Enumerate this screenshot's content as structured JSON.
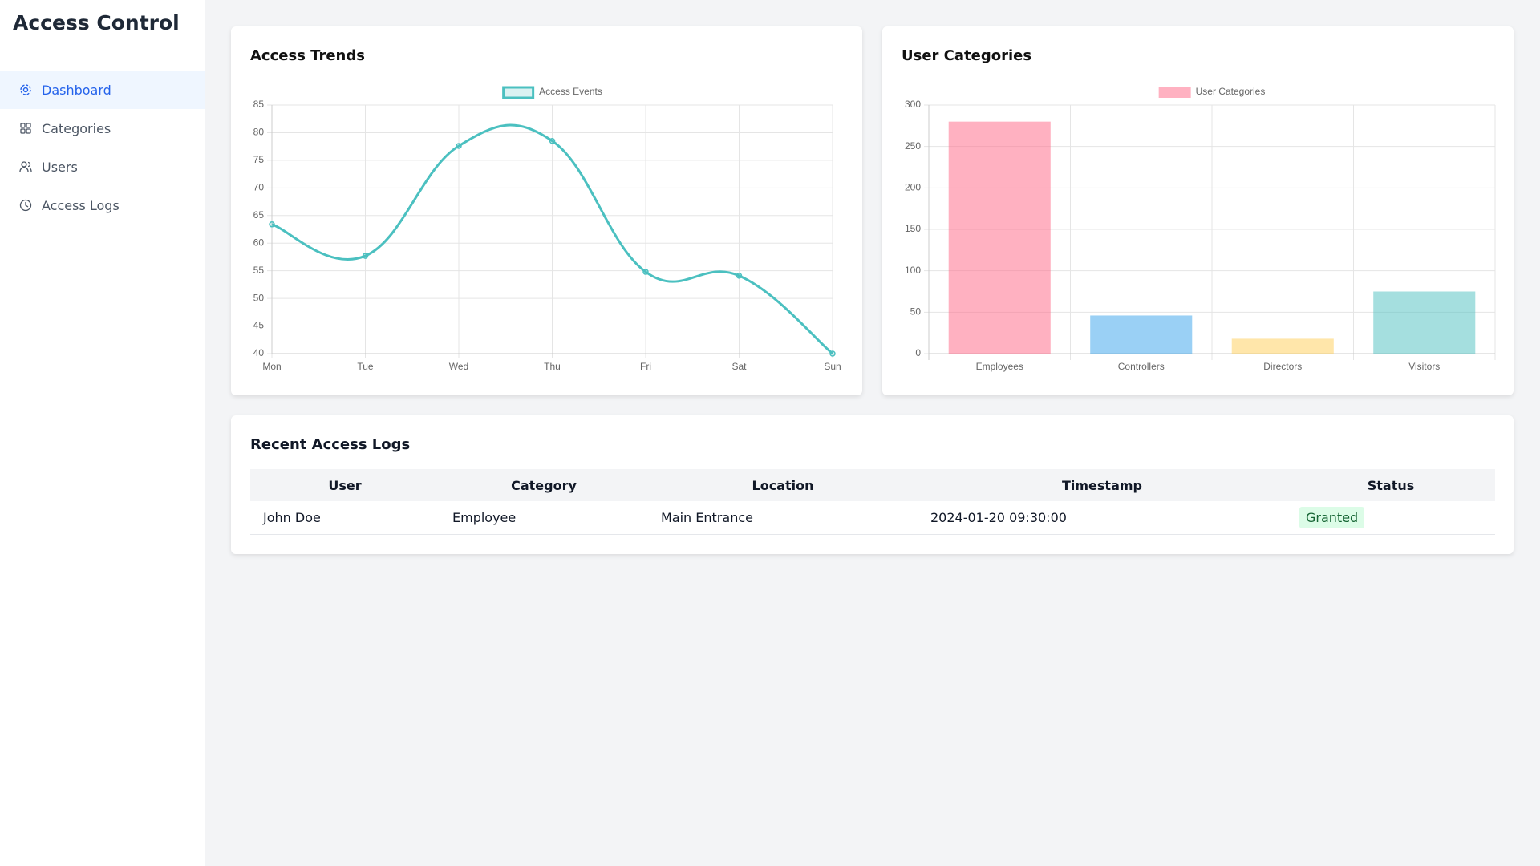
{
  "sidebar": {
    "title": "Access Control",
    "nav": [
      "Dashboard",
      "Categories",
      "Users",
      "Access Logs"
    ]
  },
  "chart_data": [
    {
      "type": "line",
      "title": "Access Trends",
      "categories": [
        "Mon",
        "Tue",
        "Wed",
        "Thu",
        "Fri",
        "Sat",
        "Sun"
      ],
      "series": [
        {
          "name": "Access Events",
          "color": "#4bc0c0",
          "values": [
            63.4,
            57.7,
            77.6,
            78.5,
            54.8,
            54.1,
            40
          ]
        }
      ],
      "ylim": [
        40,
        85
      ],
      "yticks": [
        40,
        45,
        50,
        55,
        60,
        65,
        70,
        75,
        80,
        85
      ],
      "grid": true,
      "legend": "top"
    },
    {
      "type": "bar",
      "title": "User Categories",
      "categories": [
        "Employees",
        "Controllers",
        "Directors",
        "Visitors"
      ],
      "series": [
        {
          "name": "User Categories",
          "color": "rgba(255,99,132,0.5)",
          "colors": [
            "rgba(255,99,132,0.5)",
            "rgba(54,162,235,0.5)",
            "rgba(255,206,86,0.5)",
            "rgba(75,192,192,0.5)"
          ],
          "values": [
            280,
            46,
            18,
            75
          ]
        }
      ],
      "ylim": [
        0,
        300
      ],
      "yticks": [
        0,
        50,
        100,
        150,
        200,
        250,
        300
      ],
      "grid": true,
      "legend": "top"
    }
  ],
  "table": {
    "title": "Recent Access Logs",
    "columns": [
      "User",
      "Category",
      "Location",
      "Timestamp",
      "Status"
    ],
    "rows": [
      [
        "John Doe",
        "Employee",
        "Main Entrance",
        "2024-01-20 09:30:00",
        "Granted"
      ]
    ]
  }
}
